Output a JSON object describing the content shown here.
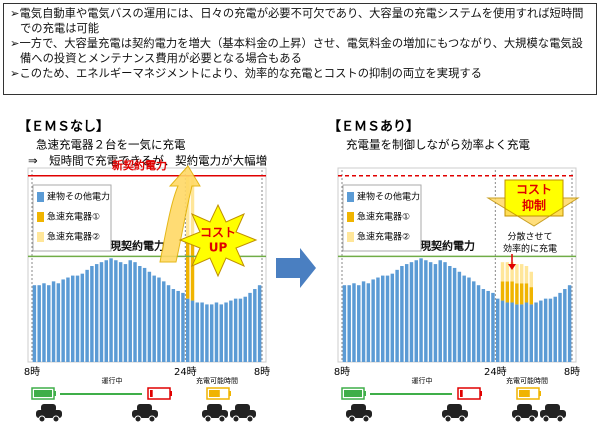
{
  "bullets": [
    "電気自動車や電気バスの運用には、日々の充電が必要不可欠であり、大容量の充電システムを使用すれば短時間での充電は可能",
    "一方で、大容量充電は契約電力を増大（基本料金の上昇）させ、電気料金の増加にもつながり、大規模な電気設備への投資とメンテナンス費用が必要となる場合もある",
    "このため、エネルギーマネジメントにより、効率的な充電とコストの抑制の両立を実現する"
  ],
  "chart_data": [
    {
      "type": "bar",
      "title": "【ＥＭＳなし】",
      "subtitle": [
        "急速充電器２台を一気に充電",
        "⇒　短時間で充電できるが、契約電力が大幅増"
      ],
      "x": [
        0.5,
        1.5,
        2.5,
        3.5,
        4.5,
        5.5,
        6.5,
        7.5,
        8.5,
        9.5,
        10.5,
        11.5,
        12.5,
        13.5,
        14.5,
        15.5,
        16.5,
        17.5,
        18.5,
        19.5,
        20.5,
        21.5,
        22.5,
        23.5,
        24.5,
        25.5,
        26.5,
        27.5,
        28.5,
        29.5,
        30.5,
        31.5,
        32.5,
        33.5,
        34.5,
        35.5,
        36.5,
        37.5,
        38.5,
        39.5,
        40.5,
        41.5,
        42.5,
        43.5,
        44.5,
        45.5,
        46.5,
        47.5
      ],
      "xlim": [
        0,
        48
      ],
      "xticks": [
        {
          "value": 0,
          "label": "8時"
        },
        {
          "value": 32,
          "label": "24時"
        },
        {
          "value": 48,
          "label": "8時"
        }
      ],
      "ylim": [
        0,
        100
      ],
      "legend": "top-left",
      "series": [
        {
          "name": "建物その他電力",
          "color": "#5b9bd5",
          "values": [
            40,
            40,
            41,
            40,
            42,
            41,
            43,
            44,
            45,
            45,
            46,
            48,
            50,
            51,
            52,
            53,
            54,
            53,
            52,
            51,
            53,
            52,
            50,
            49,
            47,
            45,
            44,
            42,
            40,
            38,
            37,
            36,
            33,
            32,
            31,
            31,
            30,
            30,
            31,
            30,
            31,
            32,
            33,
            33,
            34,
            36,
            38,
            40
          ]
        },
        {
          "name": "急速充電器①",
          "color": "#f0b400",
          "values": [
            null,
            null,
            null,
            null,
            null,
            null,
            null,
            null,
            null,
            null,
            null,
            null,
            null,
            null,
            null,
            null,
            null,
            null,
            null,
            null,
            null,
            null,
            null,
            null,
            null,
            null,
            null,
            null,
            null,
            null,
            null,
            null,
            32,
            32,
            null,
            null,
            null,
            null,
            null,
            null,
            null,
            null,
            null,
            null,
            null,
            null,
            null,
            null
          ]
        },
        {
          "name": "急速充電器②",
          "color": "#ffe699",
          "values": [
            null,
            null,
            null,
            null,
            null,
            null,
            null,
            null,
            null,
            null,
            null,
            null,
            null,
            null,
            null,
            null,
            null,
            null,
            null,
            null,
            null,
            null,
            null,
            null,
            null,
            null,
            null,
            null,
            null,
            null,
            null,
            null,
            32,
            32,
            null,
            null,
            null,
            null,
            null,
            null,
            null,
            null,
            null,
            null,
            null,
            null,
            null,
            null
          ]
        }
      ],
      "reference_lines": [
        {
          "value": 97,
          "label": "新契約電力",
          "color": "#e00000"
        },
        {
          "value": 55,
          "label": "現契約電力",
          "color": "#70ad47"
        }
      ],
      "cost_label": [
        "コスト",
        "UP"
      ],
      "operation_labels": [
        "運行中",
        "充電可能時間"
      ]
    },
    {
      "type": "bar",
      "title": "【ＥＭＳあり】",
      "subtitle": [
        "充電量を制御しながら効率よく充電"
      ],
      "x": [
        0.5,
        1.5,
        2.5,
        3.5,
        4.5,
        5.5,
        6.5,
        7.5,
        8.5,
        9.5,
        10.5,
        11.5,
        12.5,
        13.5,
        14.5,
        15.5,
        16.5,
        17.5,
        18.5,
        19.5,
        20.5,
        21.5,
        22.5,
        23.5,
        24.5,
        25.5,
        26.5,
        27.5,
        28.5,
        29.5,
        30.5,
        31.5,
        32.5,
        33.5,
        34.5,
        35.5,
        36.5,
        37.5,
        38.5,
        39.5,
        40.5,
        41.5,
        42.5,
        43.5,
        44.5,
        45.5,
        46.5,
        47.5
      ],
      "xlim": [
        0,
        48
      ],
      "xticks": [
        {
          "value": 0,
          "label": "8時"
        },
        {
          "value": 32,
          "label": "24時"
        },
        {
          "value": 48,
          "label": "8時"
        }
      ],
      "ylim": [
        0,
        100
      ],
      "legend": "top-left",
      "series": [
        {
          "name": "建物その他電力",
          "color": "#5b9bd5",
          "values": [
            40,
            40,
            41,
            40,
            42,
            41,
            43,
            44,
            45,
            45,
            46,
            48,
            50,
            51,
            52,
            53,
            54,
            53,
            52,
            51,
            53,
            52,
            50,
            49,
            47,
            45,
            44,
            42,
            40,
            38,
            37,
            36,
            33,
            32,
            31,
            31,
            30,
            30,
            31,
            30,
            31,
            32,
            33,
            33,
            34,
            36,
            38,
            40
          ]
        },
        {
          "name": "急速充電器①",
          "color": "#f0b400",
          "values": [
            null,
            null,
            null,
            null,
            null,
            null,
            null,
            null,
            null,
            null,
            null,
            null,
            null,
            null,
            null,
            null,
            null,
            null,
            null,
            null,
            null,
            null,
            null,
            null,
            null,
            null,
            null,
            null,
            null,
            null,
            null,
            null,
            null,
            10,
            11,
            11,
            11,
            11,
            10,
            9,
            null,
            null,
            null,
            null,
            null,
            null,
            null,
            null
          ]
        },
        {
          "name": "急速充電器②",
          "color": "#ffe699",
          "values": [
            null,
            null,
            null,
            null,
            null,
            null,
            null,
            null,
            null,
            null,
            null,
            null,
            null,
            null,
            null,
            null,
            null,
            null,
            null,
            null,
            null,
            null,
            null,
            null,
            null,
            null,
            null,
            null,
            null,
            null,
            null,
            null,
            null,
            10,
            10,
            10,
            10,
            10,
            9,
            8,
            null,
            null,
            null,
            null,
            null,
            null,
            null,
            null
          ]
        }
      ],
      "reference_lines": [
        {
          "value": 97,
          "color": "#e00000"
        },
        {
          "value": 55,
          "label": "現契約電力",
          "color": "#70ad47"
        }
      ],
      "cost_label": [
        "コスト",
        "抑制"
      ],
      "note": [
        "分散させて",
        "効率的に充電"
      ],
      "operation_labels": [
        "運行中",
        "充電可能時間"
      ]
    }
  ]
}
